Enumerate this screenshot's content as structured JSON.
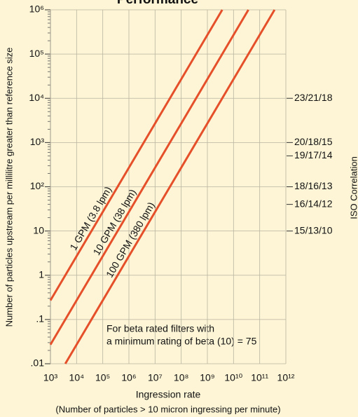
{
  "chart_data": {
    "type": "line",
    "title": "Performance",
    "x_label": "Ingression rate",
    "x_sublabel": "(Number of particles > 10 micron ingressing per minute)",
    "y_label": "Number of particles upstream per millilitre greater than reference size",
    "y2_label": "ISO Correlation",
    "log_x": true,
    "log_y": true,
    "grid": true,
    "xlim": [
      1000,
      1000000000000
    ],
    "ylim": [
      0.01,
      1000000
    ],
    "xticks": [
      {
        "value": 1000,
        "label": "10³"
      },
      {
        "value": 10000,
        "label": "10⁴"
      },
      {
        "value": 100000,
        "label": "10⁵"
      },
      {
        "value": 1000000,
        "label": "10⁶"
      },
      {
        "value": 10000000,
        "label": "10⁷"
      },
      {
        "value": 100000000,
        "label": "10⁸"
      },
      {
        "value": 1000000000,
        "label": "10⁹"
      },
      {
        "value": 10000000000,
        "label": "10¹⁰"
      },
      {
        "value": 100000000000,
        "label": "10¹¹"
      },
      {
        "value": 1000000000000,
        "label": "10¹²"
      }
    ],
    "yticks": [
      {
        "value": 0.01,
        "label": ".01"
      },
      {
        "value": 0.1,
        "label": ".1"
      },
      1,
      10,
      {
        "value": 100,
        "label": "10²"
      },
      {
        "value": 1000,
        "label": "10³"
      },
      {
        "value": 10000,
        "label": "10⁴"
      },
      {
        "value": 100000,
        "label": "10⁵"
      },
      {
        "value": 1000000,
        "label": "10⁶"
      }
    ],
    "y2ticks": [
      {
        "value": 10000,
        "label": "23/21/18"
      },
      {
        "value": 1000,
        "label": "20/18/15"
      },
      {
        "value": 500,
        "label": "19/17/14"
      },
      {
        "value": 100,
        "label": "18/16/13"
      },
      {
        "value": 40,
        "label": "16/14/12"
      },
      {
        "value": 10,
        "label": "15/13/10"
      }
    ],
    "annotations": [
      "For beta rated filters with",
      "a minimum rating of beta (10) = 75"
    ],
    "series": [
      {
        "name": "1 GPM (3.8 lpm)",
        "color": "#e5502a",
        "x": [
          1000,
          3700000000
        ],
        "values": [
          0.27,
          1000000
        ]
      },
      {
        "name": "10 GPM (38 lpm)",
        "color": "#e5502a",
        "x": [
          1000,
          37000000000
        ],
        "values": [
          0.027,
          1000000
        ]
      },
      {
        "name": "100 GPM (380 lpm)",
        "color": "#e5502a",
        "x": [
          3700,
          370000000000
        ],
        "values": [
          0.01,
          1000000
        ]
      }
    ]
  }
}
